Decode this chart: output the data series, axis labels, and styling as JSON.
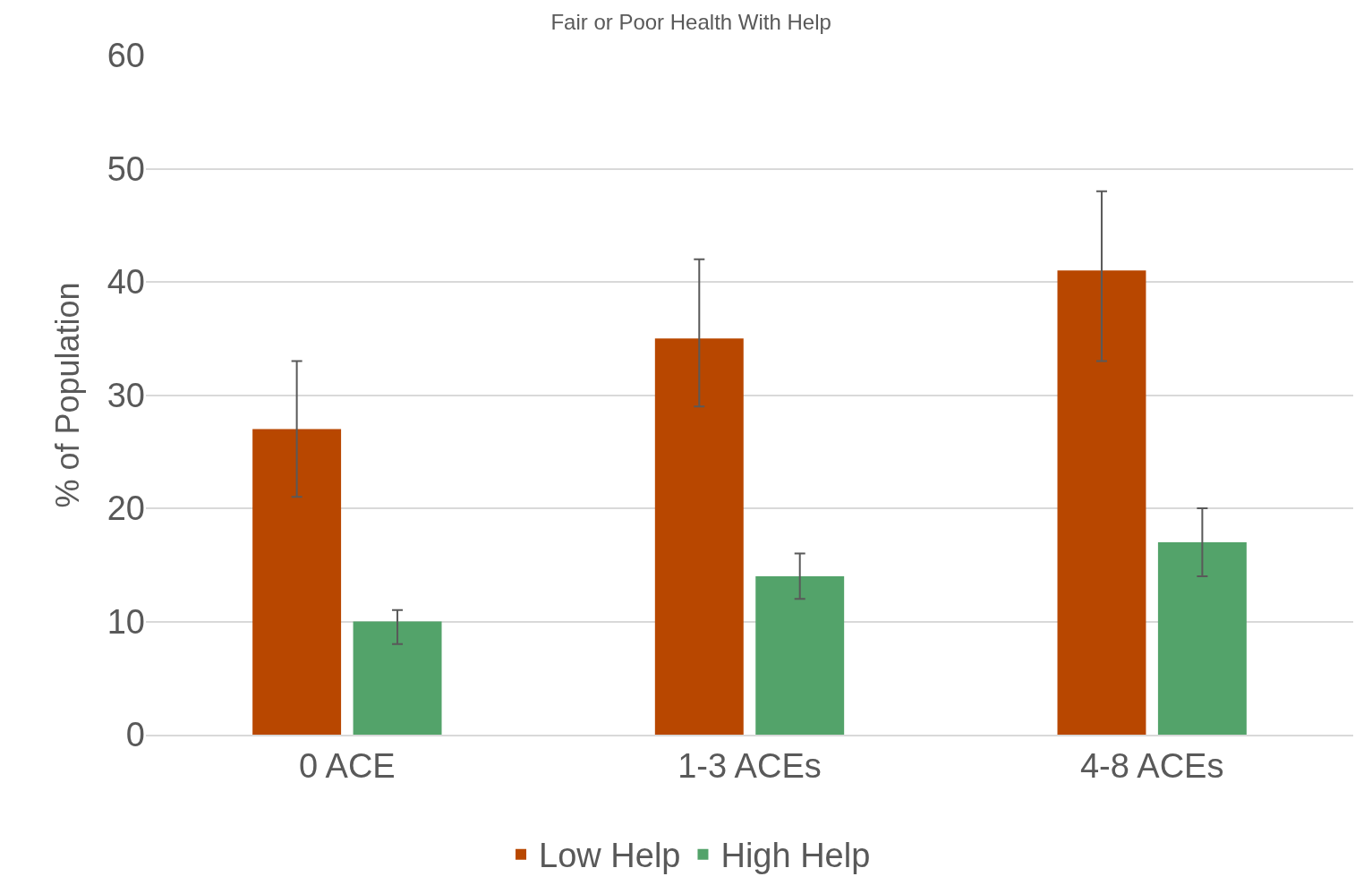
{
  "chart_data": {
    "type": "bar",
    "title": "Fair or Poor Health With Help",
    "ylabel": "% of Population",
    "categories": [
      "0 ACE",
      "1-3 ACEs",
      "4-8 ACEs"
    ],
    "series": [
      {
        "name": "Low Help",
        "color": "#b84700",
        "values": [
          27,
          35,
          41
        ],
        "errors": [
          [
            21,
            33
          ],
          [
            29,
            42
          ],
          [
            33,
            48
          ]
        ]
      },
      {
        "name": "High Help",
        "color": "#53a36a",
        "values": [
          10,
          14,
          17
        ],
        "errors": [
          [
            8,
            11
          ],
          [
            12,
            16
          ],
          [
            14,
            20
          ]
        ]
      }
    ],
    "ylim": [
      0,
      60
    ],
    "yticks": [
      0,
      10,
      20,
      30,
      40,
      50,
      60
    ],
    "grid": "y",
    "legend": "bottom"
  }
}
